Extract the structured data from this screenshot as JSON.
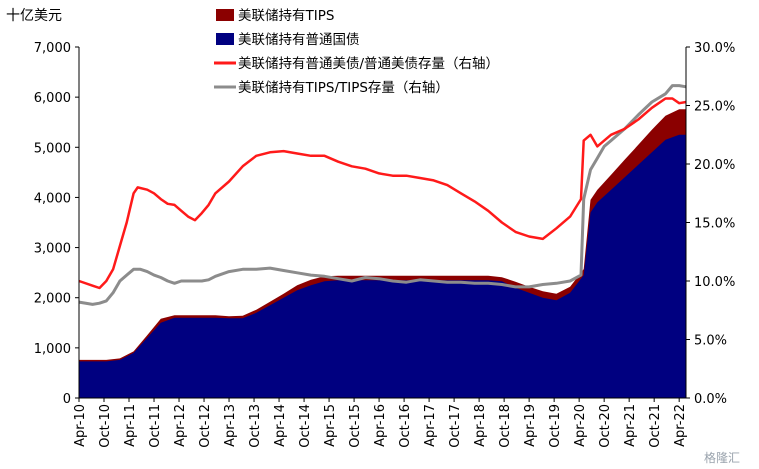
{
  "chart_data": {
    "type": "area",
    "unit_label": "十亿美元",
    "x_tick_labels": [
      "Apr-10",
      "Oct-10",
      "Apr-11",
      "Oct-11",
      "Apr-12",
      "Oct-12",
      "Apr-13",
      "Oct-13",
      "Apr-14",
      "Oct-14",
      "Apr-15",
      "Oct-15",
      "Apr-16",
      "Oct-16",
      "Apr-17",
      "Oct-17",
      "Apr-18",
      "Oct-18",
      "Apr-19",
      "Oct-19",
      "Apr-20",
      "Oct-20",
      "Apr-21",
      "Oct-21",
      "Apr-22"
    ],
    "y_left": {
      "ylim": [
        0,
        7000
      ],
      "ticks": [
        "0",
        "1,000",
        "2,000",
        "3,000",
        "4,000",
        "5,000",
        "6,000",
        "7,000"
      ]
    },
    "y_right": {
      "ylim": [
        0,
        30
      ],
      "ticks": [
        "0.0%",
        "5.0%",
        "10.0%",
        "15.0%",
        "20.0%",
        "25.0%",
        "30.0%"
      ]
    },
    "legend": [
      {
        "key": "tips",
        "label": "美联储持有TIPS",
        "color": "#8b0000",
        "kind": "area"
      },
      {
        "key": "treasury",
        "label": "美联储持有普通国债",
        "color": "#000080",
        "kind": "area"
      },
      {
        "key": "share_treasury",
        "label": "美联储持有普通美债/普通美债存量（右轴）",
        "color": "#ff1a1a",
        "kind": "line"
      },
      {
        "key": "share_tips",
        "label": "美联储持有TIPS/TIPS存量（右轴）",
        "color": "#8c8c8c",
        "kind": "line"
      }
    ],
    "series": [
      {
        "key": "treasury",
        "axis": "left",
        "points": [
          [
            0,
            730
          ],
          [
            2,
            730
          ],
          [
            3,
            760
          ],
          [
            4,
            900
          ],
          [
            5,
            1200
          ],
          [
            6,
            1500
          ],
          [
            7,
            1600
          ],
          [
            8,
            1600
          ],
          [
            9,
            1600
          ],
          [
            10,
            1600
          ],
          [
            11,
            1590
          ],
          [
            12,
            1590
          ],
          [
            13,
            1700
          ],
          [
            14,
            1850
          ],
          [
            15,
            2000
          ],
          [
            16,
            2150
          ],
          [
            17,
            2250
          ],
          [
            18,
            2330
          ],
          [
            19,
            2350
          ],
          [
            20,
            2350
          ],
          [
            21,
            2350
          ],
          [
            22,
            2350
          ],
          [
            23,
            2350
          ],
          [
            24,
            2350
          ],
          [
            25,
            2350
          ],
          [
            26,
            2350
          ],
          [
            27,
            2350
          ],
          [
            28,
            2350
          ],
          [
            29,
            2350
          ],
          [
            30,
            2350
          ],
          [
            31,
            2330
          ],
          [
            32,
            2200
          ],
          [
            33,
            2100
          ],
          [
            34,
            2000
          ],
          [
            35,
            1950
          ],
          [
            36,
            2100
          ],
          [
            37,
            2450
          ],
          [
            37.5,
            3700
          ],
          [
            38,
            3900
          ],
          [
            39,
            4150
          ],
          [
            40,
            4400
          ],
          [
            41,
            4650
          ],
          [
            42,
            4900
          ],
          [
            43,
            5150
          ],
          [
            44,
            5250
          ],
          [
            44.5,
            5250
          ]
        ]
      },
      {
        "key": "tips_total",
        "axis": "left",
        "points": [
          [
            0,
            760
          ],
          [
            2,
            760
          ],
          [
            3,
            790
          ],
          [
            4,
            930
          ],
          [
            5,
            1250
          ],
          [
            6,
            1580
          ],
          [
            7,
            1650
          ],
          [
            8,
            1650
          ],
          [
            9,
            1650
          ],
          [
            10,
            1650
          ],
          [
            11,
            1630
          ],
          [
            12,
            1640
          ],
          [
            13,
            1760
          ],
          [
            14,
            1920
          ],
          [
            15,
            2080
          ],
          [
            16,
            2250
          ],
          [
            17,
            2360
          ],
          [
            18,
            2430
          ],
          [
            19,
            2440
          ],
          [
            20,
            2440
          ],
          [
            21,
            2440
          ],
          [
            22,
            2440
          ],
          [
            23,
            2440
          ],
          [
            24,
            2440
          ],
          [
            25,
            2440
          ],
          [
            26,
            2440
          ],
          [
            27,
            2440
          ],
          [
            28,
            2440
          ],
          [
            29,
            2440
          ],
          [
            30,
            2440
          ],
          [
            31,
            2410
          ],
          [
            32,
            2320
          ],
          [
            33,
            2220
          ],
          [
            34,
            2130
          ],
          [
            35,
            2080
          ],
          [
            36,
            2220
          ],
          [
            37,
            2570
          ],
          [
            37.5,
            3950
          ],
          [
            38,
            4150
          ],
          [
            39,
            4450
          ],
          [
            40,
            4750
          ],
          [
            41,
            5050
          ],
          [
            42,
            5350
          ],
          [
            43,
            5630
          ],
          [
            44,
            5760
          ],
          [
            44.5,
            5760
          ]
        ]
      },
      {
        "key": "share_treasury",
        "axis": "right",
        "points": [
          [
            0,
            10.0
          ],
          [
            1,
            9.6
          ],
          [
            1.5,
            9.4
          ],
          [
            2,
            10.0
          ],
          [
            2.5,
            11.0
          ],
          [
            3,
            13.0
          ],
          [
            3.5,
            15.0
          ],
          [
            4,
            17.5
          ],
          [
            4.3,
            18.0
          ],
          [
            5,
            17.8
          ],
          [
            5.5,
            17.5
          ],
          [
            6,
            17.0
          ],
          [
            6.5,
            16.6
          ],
          [
            7,
            16.5
          ],
          [
            7.5,
            16.0
          ],
          [
            8,
            15.5
          ],
          [
            8.5,
            15.2
          ],
          [
            9,
            15.8
          ],
          [
            9.5,
            16.5
          ],
          [
            10,
            17.5
          ],
          [
            11,
            18.5
          ],
          [
            12,
            19.8
          ],
          [
            13,
            20.7
          ],
          [
            14,
            21.0
          ],
          [
            15,
            21.1
          ],
          [
            16,
            20.9
          ],
          [
            17,
            20.7
          ],
          [
            18,
            20.7
          ],
          [
            19,
            20.2
          ],
          [
            20,
            19.8
          ],
          [
            21,
            19.6
          ],
          [
            22,
            19.2
          ],
          [
            23,
            19.0
          ],
          [
            24,
            19.0
          ],
          [
            25,
            18.8
          ],
          [
            26,
            18.6
          ],
          [
            27,
            18.2
          ],
          [
            28,
            17.5
          ],
          [
            29,
            16.8
          ],
          [
            30,
            16.0
          ],
          [
            31,
            15.0
          ],
          [
            32,
            14.2
          ],
          [
            33,
            13.8
          ],
          [
            34,
            13.6
          ],
          [
            35,
            14.5
          ],
          [
            36,
            15.5
          ],
          [
            36.8,
            17.0
          ],
          [
            37,
            22.0
          ],
          [
            37.5,
            22.5
          ],
          [
            38,
            21.5
          ],
          [
            38.5,
            22.0
          ],
          [
            39,
            22.5
          ],
          [
            40,
            23.0
          ],
          [
            41,
            23.8
          ],
          [
            42,
            24.8
          ],
          [
            43,
            25.6
          ],
          [
            43.5,
            25.6
          ],
          [
            44,
            25.2
          ],
          [
            44.5,
            25.3
          ]
        ]
      },
      {
        "key": "share_tips",
        "axis": "right",
        "points": [
          [
            0,
            8.2
          ],
          [
            1,
            8.0
          ],
          [
            1.5,
            8.1
          ],
          [
            2,
            8.3
          ],
          [
            2.5,
            9.0
          ],
          [
            3,
            10.0
          ],
          [
            3.5,
            10.5
          ],
          [
            4,
            11.0
          ],
          [
            4.5,
            11.0
          ],
          [
            5,
            10.8
          ],
          [
            5.5,
            10.5
          ],
          [
            6,
            10.3
          ],
          [
            6.5,
            10.0
          ],
          [
            7,
            9.8
          ],
          [
            7.5,
            10.0
          ],
          [
            8,
            10.0
          ],
          [
            8.5,
            10.0
          ],
          [
            9,
            10.0
          ],
          [
            9.5,
            10.1
          ],
          [
            10,
            10.4
          ],
          [
            11,
            10.8
          ],
          [
            12,
            11.0
          ],
          [
            13,
            11.0
          ],
          [
            14,
            11.1
          ],
          [
            15,
            10.9
          ],
          [
            16,
            10.7
          ],
          [
            17,
            10.5
          ],
          [
            18,
            10.4
          ],
          [
            19,
            10.2
          ],
          [
            20,
            10.0
          ],
          [
            21,
            10.3
          ],
          [
            22,
            10.2
          ],
          [
            23,
            10.0
          ],
          [
            24,
            9.9
          ],
          [
            25,
            10.1
          ],
          [
            26,
            10.0
          ],
          [
            27,
            9.9
          ],
          [
            28,
            9.9
          ],
          [
            29,
            9.8
          ],
          [
            30,
            9.8
          ],
          [
            31,
            9.7
          ],
          [
            32,
            9.5
          ],
          [
            33,
            9.5
          ],
          [
            34,
            9.7
          ],
          [
            35,
            9.8
          ],
          [
            36,
            10.0
          ],
          [
            36.8,
            10.5
          ],
          [
            37,
            17.0
          ],
          [
            37.5,
            19.5
          ],
          [
            38,
            20.5
          ],
          [
            38.5,
            21.5
          ],
          [
            39,
            22.0
          ],
          [
            40,
            23.0
          ],
          [
            41,
            24.2
          ],
          [
            42,
            25.3
          ],
          [
            43,
            26.0
          ],
          [
            43.5,
            26.7
          ],
          [
            44,
            26.7
          ],
          [
            44.5,
            26.6
          ]
        ]
      }
    ]
  },
  "watermark": "格隆汇"
}
